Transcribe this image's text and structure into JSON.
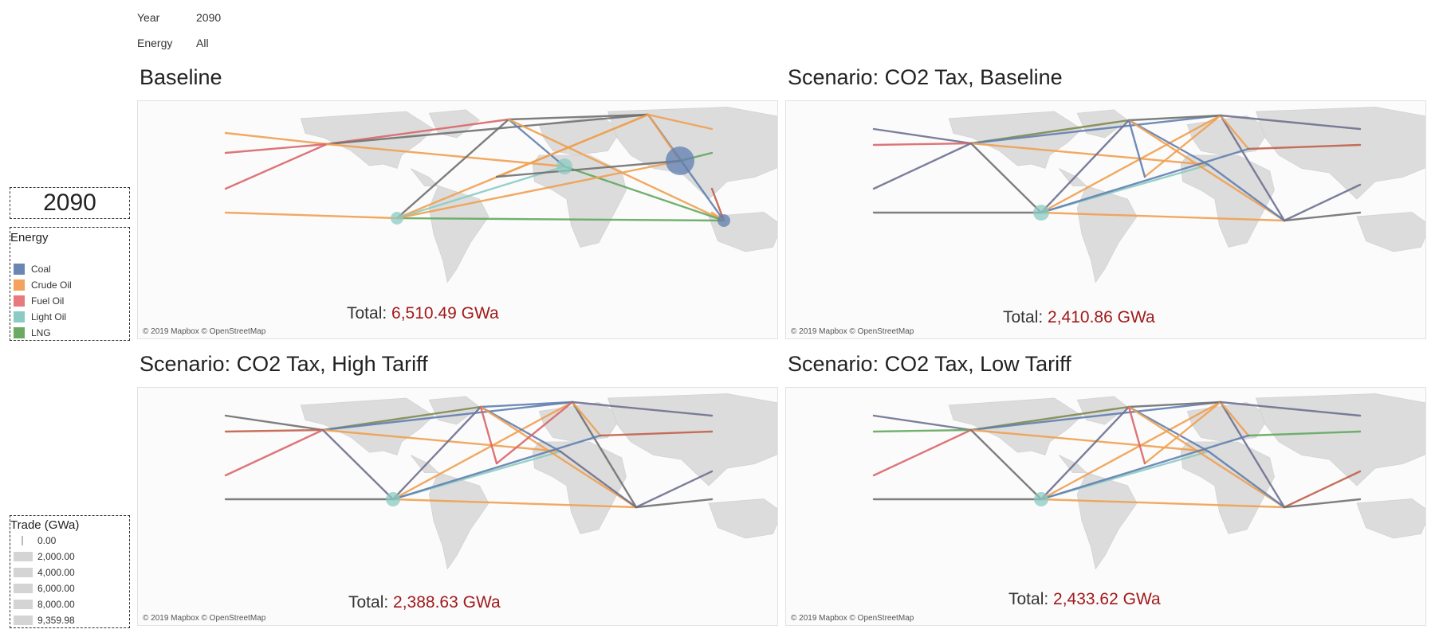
{
  "filters": {
    "year_label": "Year",
    "year_value": "2090",
    "energy_label": "Energy",
    "energy_value": "All"
  },
  "year_display": "2090",
  "energy_legend": {
    "title": "Energy",
    "items": [
      {
        "label": "Coal",
        "color": "#6b86b2"
      },
      {
        "label": "Crude Oil",
        "color": "#f3a35b"
      },
      {
        "label": "Fuel Oil",
        "color": "#e8797d"
      },
      {
        "label": "Light Oil",
        "color": "#8ccbc3"
      },
      {
        "label": "LNG",
        "color": "#6aaa63"
      }
    ]
  },
  "trade_legend": {
    "title": "Trade (GWa)",
    "items": [
      {
        "label": "0.00",
        "level": 0
      },
      {
        "label": "2,000.00",
        "level": 2000
      },
      {
        "label": "4,000.00",
        "level": 4000
      },
      {
        "label": "6,000.00",
        "level": 6000
      },
      {
        "label": "8,000.00",
        "level": 8000
      },
      {
        "label": "9,359.98",
        "level": 9359.98
      }
    ]
  },
  "panels": [
    {
      "title": "Baseline",
      "total_label": "Total:",
      "total_value": "6,510.49 GWa",
      "attribution": "© 2019 Mapbox © OpenStreetMap"
    },
    {
      "title": "Scenario: CO2 Tax, Baseline",
      "total_label": "Total:",
      "total_value": "2,410.86 GWa",
      "attribution": "© 2019 Mapbox © OpenStreetMap"
    },
    {
      "title": "Scenario: CO2 Tax, High Tariff",
      "total_label": "Total:",
      "total_value": "2,388.63 GWa",
      "attribution": "© 2019 Mapbox © OpenStreetMap"
    },
    {
      "title": "Scenario: CO2 Tax, Low Tariff",
      "total_label": "Total:",
      "total_value": "2,433.62 GWa",
      "attribution": "© 2019 Mapbox © OpenStreetMap"
    }
  ],
  "line_colors": {
    "coal": "#5f7fb0",
    "crude": "#f0a050",
    "fuel": "#d9666a",
    "light": "#8ccbc3",
    "lng": "#62a85e",
    "gray": "#707070",
    "slate": "#6e7090",
    "olive": "#808a50",
    "brick": "#c0604a"
  }
}
